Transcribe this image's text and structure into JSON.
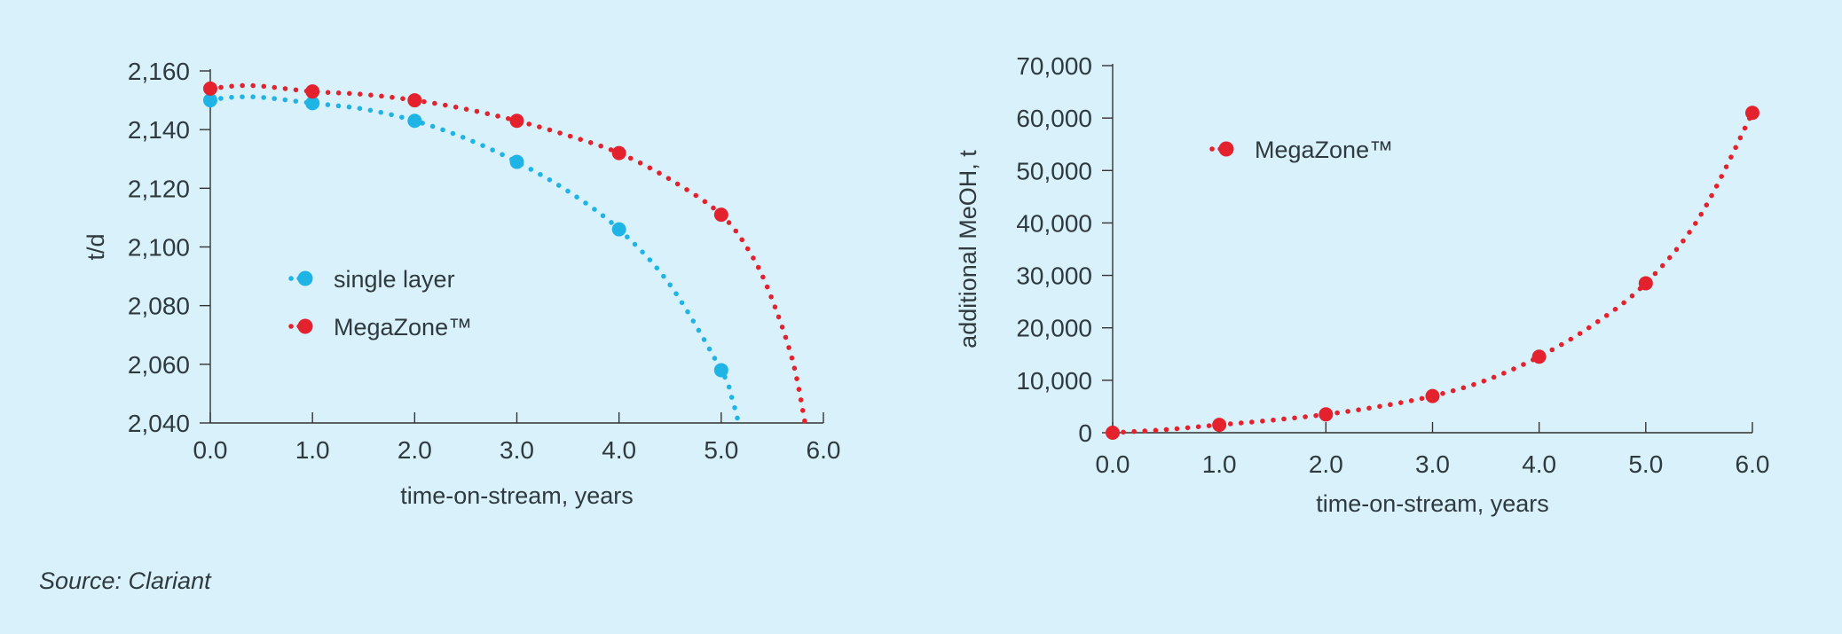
{
  "colors": {
    "background": "#d8f1fa",
    "axis": "#333333",
    "text": "#2f3a3f",
    "single_layer": "#1fb4e6",
    "megazone": "#e3222d"
  },
  "source": "Source: Clariant",
  "chart_data": [
    {
      "type": "line",
      "title": "",
      "xlabel": "time-on-stream, years",
      "ylabel": "t/d",
      "xlim": [
        0,
        6
      ],
      "ylim": [
        2040,
        2160
      ],
      "x_ticks": [
        "0.0",
        "1.0",
        "2.0",
        "3.0",
        "4.0",
        "5.0",
        "6.0"
      ],
      "y_ticks": [
        "2,040",
        "2,060",
        "2,080",
        "2,100",
        "2,120",
        "2,140",
        "2,160"
      ],
      "legend_position": "center-left",
      "series": [
        {
          "name": "single layer",
          "color": "#1fb4e6",
          "markers": [
            [
              0,
              2150
            ],
            [
              1,
              2149
            ],
            [
              2,
              2143
            ],
            [
              3,
              2129
            ],
            [
              4,
              2106
            ],
            [
              5,
              2058
            ]
          ],
          "curve": [
            [
              0,
              2150
            ],
            [
              0.2,
              2151
            ],
            [
              0.5,
              2151
            ],
            [
              1,
              2149
            ],
            [
              1.5,
              2147
            ],
            [
              2,
              2143
            ],
            [
              2.5,
              2137
            ],
            [
              3,
              2129
            ],
            [
              3.5,
              2119
            ],
            [
              4,
              2106
            ],
            [
              4.5,
              2087
            ],
            [
              5,
              2058
            ],
            [
              5.1,
              2049
            ],
            [
              5.17,
              2040
            ]
          ]
        },
        {
          "name": "MegaZone™",
          "color": "#e3222d",
          "markers": [
            [
              0,
              2154
            ],
            [
              1,
              2153
            ],
            [
              2,
              2150
            ],
            [
              3,
              2143
            ],
            [
              4,
              2132
            ],
            [
              5,
              2111
            ]
          ],
          "curve": [
            [
              0,
              2154
            ],
            [
              0.4,
              2155
            ],
            [
              1,
              2153
            ],
            [
              1.5,
              2152
            ],
            [
              2,
              2150
            ],
            [
              2.5,
              2147
            ],
            [
              3,
              2143
            ],
            [
              3.5,
              2138
            ],
            [
              4,
              2132
            ],
            [
              4.5,
              2123
            ],
            [
              5,
              2111
            ],
            [
              5.3,
              2097
            ],
            [
              5.5,
              2082
            ],
            [
              5.7,
              2061
            ],
            [
              5.82,
              2040
            ]
          ]
        }
      ]
    },
    {
      "type": "line",
      "title": "",
      "xlabel": "time-on-stream, years",
      "ylabel": "additional MeOH, t",
      "xlim": [
        0,
        6
      ],
      "ylim": [
        0,
        70000
      ],
      "x_ticks": [
        "0.0",
        "1.0",
        "2.0",
        "3.0",
        "4.0",
        "5.0",
        "6.0"
      ],
      "y_ticks": [
        "0",
        "10,000",
        "20,000",
        "30,000",
        "40,000",
        "50,000",
        "60,000",
        "70,000"
      ],
      "legend_position": "top-left",
      "series": [
        {
          "name": "MegaZone™",
          "color": "#e3222d",
          "markers": [
            [
              0,
              0
            ],
            [
              1,
              1500
            ],
            [
              2,
              3500
            ],
            [
              3,
              7000
            ],
            [
              4,
              14500
            ],
            [
              5,
              28500
            ],
            [
              6,
              61000
            ]
          ],
          "curve": [
            [
              0,
              0
            ],
            [
              0.5,
              600
            ],
            [
              1,
              1500
            ],
            [
              1.5,
              2400
            ],
            [
              2,
              3500
            ],
            [
              2.5,
              5000
            ],
            [
              3,
              7000
            ],
            [
              3.5,
              10000
            ],
            [
              4,
              14500
            ],
            [
              4.5,
              20500
            ],
            [
              5,
              28500
            ],
            [
              5.5,
              41000
            ],
            [
              6,
              61000
            ]
          ]
        }
      ]
    }
  ]
}
